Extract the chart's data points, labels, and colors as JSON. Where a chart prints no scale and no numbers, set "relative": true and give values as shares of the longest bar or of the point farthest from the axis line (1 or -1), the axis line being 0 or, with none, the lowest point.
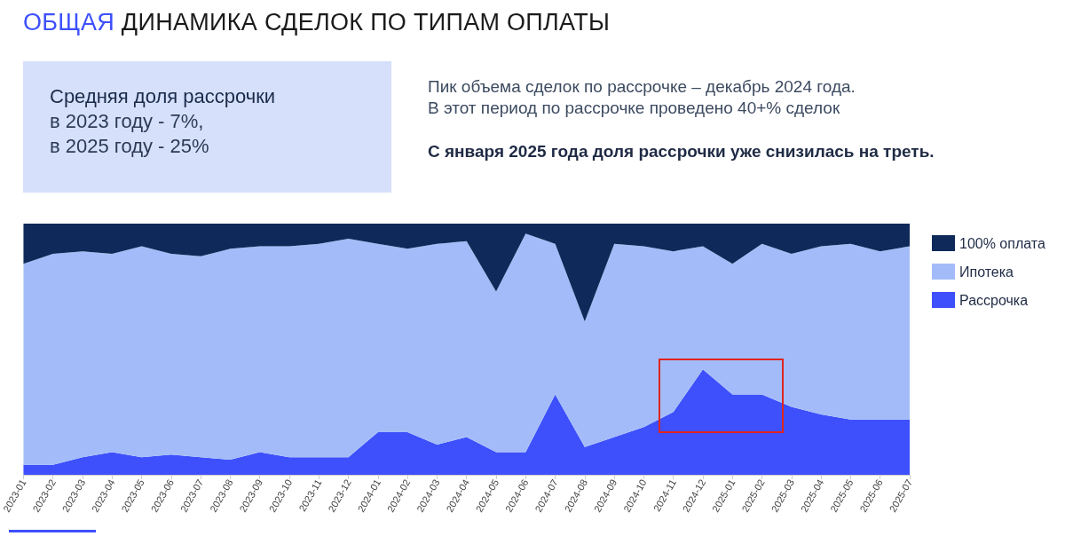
{
  "chart_data": {
    "type": "area",
    "stacked": true,
    "relative": true,
    "title": "ОБЩАЯ ДИНАМИКА СДЕЛОК ПО ТИПАМ ОПЛАТЫ",
    "annotations": [
      "Средняя доля рассрочки\nв 2023 году - 7%,\nв 2025 году  - 25%",
      "Пик объема сделок по рассрочке – декабрь 2024 года.\nВ этот период по рассрочке проведено 40+% сделок",
      "С января 2025 года доля рассрочки уже снизилась на треть."
    ],
    "categories": [
      "2023-01",
      "2023-02",
      "2023-03",
      "2023-04",
      "2023-05",
      "2023-06",
      "2023-07",
      "2023-08",
      "2023-09",
      "2023-10",
      "2023-11",
      "2023-12",
      "2024-01",
      "2024-02",
      "2024-03",
      "2024-04",
      "2024-05",
      "2024-06",
      "2024-07",
      "2024-08",
      "2024-09",
      "2024-10",
      "2024-11",
      "2024-12",
      "2025-01",
      "2025-02",
      "2025-03",
      "2025-04",
      "2025-05",
      "2025-06",
      "2025-07"
    ],
    "series": [
      {
        "name": "Рассрочка",
        "color": "#3d50fc",
        "values": [
          0.04,
          0.04,
          0.07,
          0.09,
          0.07,
          0.08,
          0.07,
          0.06,
          0.09,
          0.07,
          0.07,
          0.07,
          0.17,
          0.17,
          0.12,
          0.15,
          0.09,
          0.09,
          0.32,
          0.11,
          0.15,
          0.19,
          0.25,
          0.42,
          0.32,
          0.32,
          0.27,
          0.24,
          0.22,
          0.22,
          0.22
        ]
      },
      {
        "name": "Ипотека",
        "color": "#a3bcf9",
        "values": [
          0.8,
          0.84,
          0.82,
          0.79,
          0.84,
          0.8,
          0.8,
          0.84,
          0.82,
          0.84,
          0.85,
          0.87,
          0.75,
          0.73,
          0.8,
          0.78,
          0.64,
          0.87,
          0.6,
          0.5,
          0.77,
          0.72,
          0.64,
          0.49,
          0.52,
          0.6,
          0.61,
          0.67,
          0.7,
          0.67,
          0.69
        ]
      },
      {
        "name": "100% оплата",
        "color": "#0f2a5a",
        "values": [
          0.16,
          0.12,
          0.11,
          0.12,
          0.09,
          0.12,
          0.13,
          0.1,
          0.09,
          0.09,
          0.08,
          0.06,
          0.08,
          0.1,
          0.08,
          0.07,
          0.27,
          0.04,
          0.08,
          0.39,
          0.08,
          0.09,
          0.11,
          0.09,
          0.16,
          0.08,
          0.12,
          0.09,
          0.08,
          0.11,
          0.09
        ]
      }
    ],
    "legend": "right",
    "grid": false
  }
}
